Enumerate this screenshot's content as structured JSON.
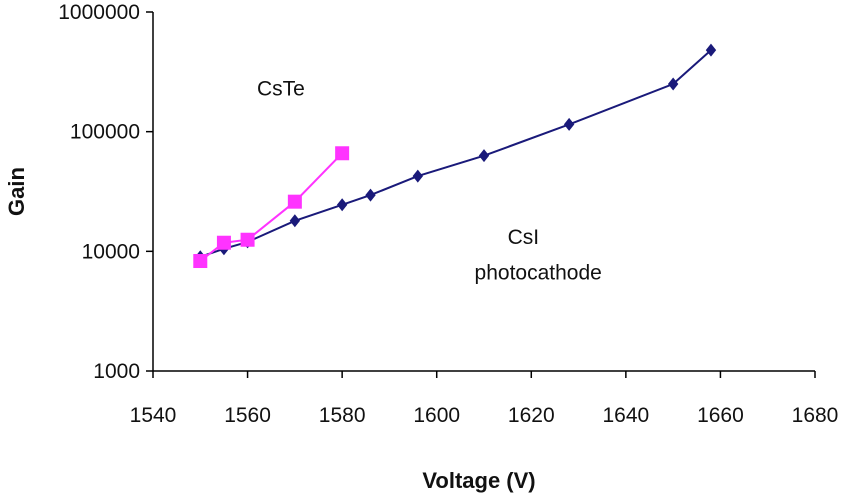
{
  "chart_data": {
    "type": "line",
    "title": "",
    "xlabel": "Voltage (V)",
    "ylabel": "Gain",
    "yscale": "log",
    "xlim": [
      1540,
      1680
    ],
    "ylim": [
      1000,
      1000000
    ],
    "xticks": [
      1540,
      1560,
      1580,
      1600,
      1620,
      1640,
      1660,
      1680
    ],
    "yticks": [
      1000,
      10000,
      100000,
      1000000
    ],
    "ytick_labels": [
      "1000",
      "10000",
      "100000",
      "1000000"
    ],
    "xtick_labels": [
      "1540",
      "1560",
      "1580",
      "1600",
      "1620",
      "1640",
      "1660",
      "1680"
    ],
    "grid": false,
    "series": [
      {
        "name": "CsI photocathode",
        "marker": "diamond",
        "color": "#1a1a7a",
        "x": [
          1550,
          1555,
          1560,
          1570,
          1580,
          1586,
          1596,
          1610,
          1628,
          1650,
          1658
        ],
        "y": [
          9000,
          10500,
          12000,
          18000,
          24500,
          29500,
          42500,
          63000,
          115000,
          250000,
          480000
        ]
      },
      {
        "name": "CsTe",
        "marker": "square",
        "color": "#ff33ff",
        "x": [
          1550,
          1555,
          1560,
          1570,
          1580
        ],
        "y": [
          8300,
          11800,
          12500,
          26000,
          66000
        ]
      }
    ],
    "annotations": [
      {
        "text": "CsTe",
        "x": 1562,
        "y": 200000
      },
      {
        "text": "CsI",
        "x": 1615,
        "y": 11500
      },
      {
        "text": "photocathode",
        "x": 1608,
        "y": 5800
      }
    ]
  }
}
